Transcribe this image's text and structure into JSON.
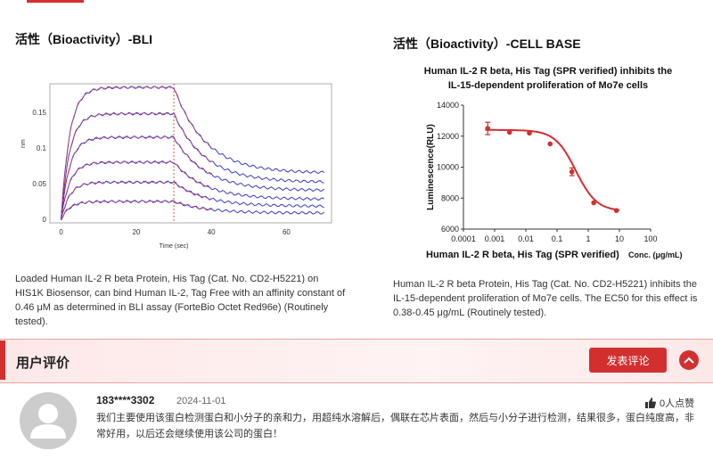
{
  "bli": {
    "title": "活性（Bioactivity）-BLI",
    "description": "Loaded Human IL-2 R beta Protein, His Tag (Cat. No. CD2-H5221) on HIS1K Biosensor, can bind Human IL-2, Tag Free with an affinity constant of 0.46 μM as determined in BLI assay (ForteBio Octet Red96e) (Routinely tested).",
    "chart_data": {
      "type": "line",
      "xlabel": "Time (sec)",
      "ylabel": "nm",
      "xlim": [
        -3,
        72
      ],
      "ylim": [
        -0.005,
        0.19
      ],
      "xticks": [
        0,
        20,
        40,
        60
      ],
      "yticks": [
        0,
        0.05,
        0.1,
        0.15
      ],
      "series_plateaus": [
        0.185,
        0.148,
        0.115,
        0.08,
        0.052,
        0.025
      ],
      "association_end": 30
    }
  },
  "cellbase": {
    "title": "活性（Bioactivity）-CELL BASE",
    "description": "Human IL-2 R beta Protein, His Tag (Cat. No. CD2-H5221) inhibits the IL-15-dependent proliferation of Mo7e cells. The EC50 for this effect is 0.38-0.45 μg/mL (Routinely tested).",
    "chart_data": {
      "type": "scatter",
      "title_line1": "Human IL-2 R beta, His Tag (SPR verified)  inhibits the",
      "title_line2": "IL-15-dependent proliferation of Mo7e cells",
      "xlabel": "Human IL-2 R beta, His Tag (SPR verified)",
      "xunit": "Conc. (μg/mL)",
      "ylabel": "Luminescence(RLU)",
      "xscale": "log",
      "xlim": [
        0.0001,
        100
      ],
      "ylim": [
        6000,
        14000
      ],
      "xticks": [
        "0.0001",
        "0.001",
        "0.01",
        "0.1",
        "1",
        "10",
        "100"
      ],
      "yticks": [
        "6000",
        "8000",
        "10000",
        "12000",
        "14000"
      ],
      "x": [
        0.0006,
        0.003,
        0.013,
        0.06,
        0.3,
        1.5,
        8
      ],
      "y": [
        12500,
        12250,
        12200,
        11500,
        9700,
        7700,
        7200
      ],
      "error": [
        400,
        0,
        0,
        0,
        250,
        0,
        0
      ],
      "color": "#d32f2f"
    }
  },
  "reviews": {
    "title": "用户评价",
    "post_button": "发表评论",
    "items": [
      {
        "user": "183****3302",
        "date": "2024-11-01",
        "likes": "0人点赞",
        "text": "我们主要使用该蛋白检测蛋白和小分子的亲和力，用超纯水溶解后，偶联在芯片表面，然后与小分子进行检测，结果很多，蛋白纯度高，非常好用，以后还会继续使用该公司的蛋白！"
      }
    ]
  }
}
